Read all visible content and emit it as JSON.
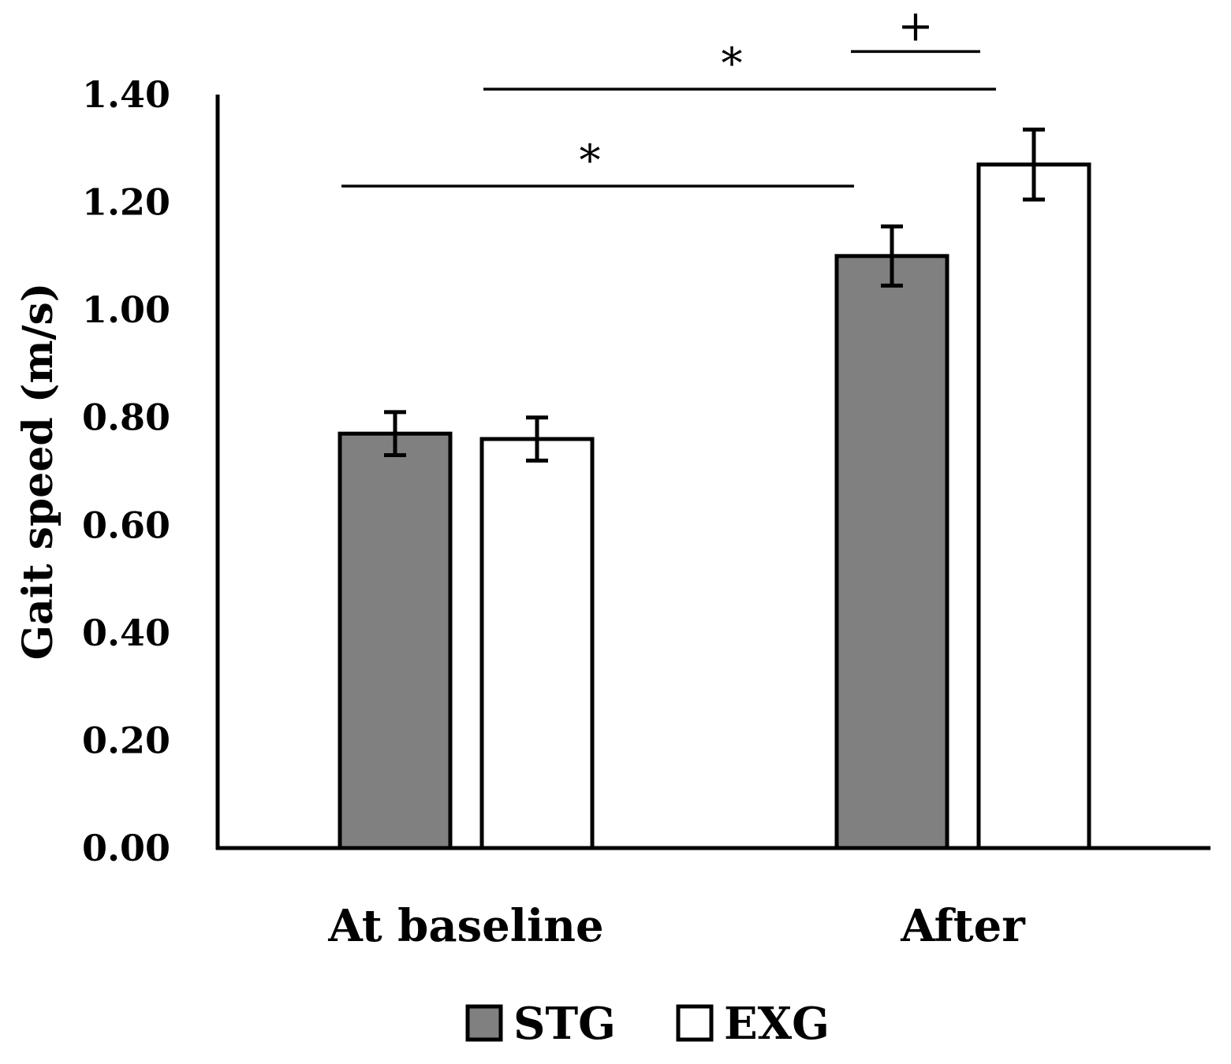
{
  "chart_data": {
    "type": "bar",
    "title": "",
    "xlabel": "",
    "ylabel": "Gait speed (m/s)",
    "ylim": [
      0,
      1.4
    ],
    "yticks": [
      "0.00",
      "0.20",
      "0.40",
      "0.60",
      "0.80",
      "1.00",
      "1.20",
      "1.40"
    ],
    "ytick_values": [
      0,
      0.2,
      0.4,
      0.6,
      0.8,
      1.0,
      1.2,
      1.4
    ],
    "categories": [
      "At baseline",
      "After"
    ],
    "series": [
      {
        "name": "STG",
        "color": "#808080",
        "values": [
          0.77,
          1.1
        ],
        "errors": [
          0.04,
          0.055
        ]
      },
      {
        "name": "EXG",
        "color": "#ffffff",
        "values": [
          0.76,
          1.27
        ],
        "errors": [
          0.04,
          0.065
        ]
      }
    ],
    "legend": {
      "position": "bottom",
      "entries": [
        "STG",
        "EXG"
      ]
    },
    "annotations": [
      {
        "label": "*",
        "from": {
          "category": 0,
          "series": 0
        },
        "to": {
          "category": 1,
          "series": 0
        },
        "level": 1.23
      },
      {
        "label": "*",
        "from": {
          "category": 0,
          "series": 1
        },
        "to": {
          "category": 1,
          "series": 1
        },
        "level": 1.41
      },
      {
        "label": "+",
        "from": {
          "category": 1,
          "series": 0
        },
        "to": {
          "category": 1,
          "series": 1
        },
        "level": 1.48
      }
    ]
  }
}
